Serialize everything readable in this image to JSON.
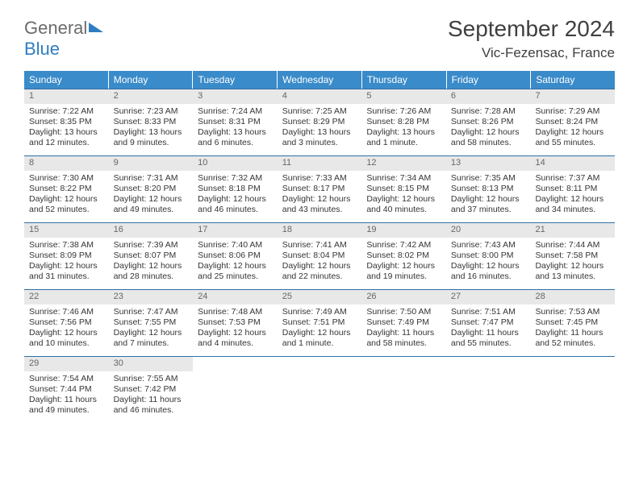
{
  "brand": {
    "part1": "General",
    "part2": "Blue"
  },
  "title": "September 2024",
  "location": "Vic-Fezensac, France",
  "day_headers": [
    "Sunday",
    "Monday",
    "Tuesday",
    "Wednesday",
    "Thursday",
    "Friday",
    "Saturday"
  ],
  "colors": {
    "header_bg": "#3a8bc9",
    "header_text": "#ffffff",
    "week_border": "#2f6fa6",
    "daynum_bg": "#e8e8e8",
    "logo_gray": "#6b6b6b",
    "logo_blue": "#2f7dc0"
  },
  "weeks": [
    [
      {
        "n": "1",
        "sr": "Sunrise: 7:22 AM",
        "ss": "Sunset: 8:35 PM",
        "dl": "Daylight: 13 hours and 12 minutes."
      },
      {
        "n": "2",
        "sr": "Sunrise: 7:23 AM",
        "ss": "Sunset: 8:33 PM",
        "dl": "Daylight: 13 hours and 9 minutes."
      },
      {
        "n": "3",
        "sr": "Sunrise: 7:24 AM",
        "ss": "Sunset: 8:31 PM",
        "dl": "Daylight: 13 hours and 6 minutes."
      },
      {
        "n": "4",
        "sr": "Sunrise: 7:25 AM",
        "ss": "Sunset: 8:29 PM",
        "dl": "Daylight: 13 hours and 3 minutes."
      },
      {
        "n": "5",
        "sr": "Sunrise: 7:26 AM",
        "ss": "Sunset: 8:28 PM",
        "dl": "Daylight: 13 hours and 1 minute."
      },
      {
        "n": "6",
        "sr": "Sunrise: 7:28 AM",
        "ss": "Sunset: 8:26 PM",
        "dl": "Daylight: 12 hours and 58 minutes."
      },
      {
        "n": "7",
        "sr": "Sunrise: 7:29 AM",
        "ss": "Sunset: 8:24 PM",
        "dl": "Daylight: 12 hours and 55 minutes."
      }
    ],
    [
      {
        "n": "8",
        "sr": "Sunrise: 7:30 AM",
        "ss": "Sunset: 8:22 PM",
        "dl": "Daylight: 12 hours and 52 minutes."
      },
      {
        "n": "9",
        "sr": "Sunrise: 7:31 AM",
        "ss": "Sunset: 8:20 PM",
        "dl": "Daylight: 12 hours and 49 minutes."
      },
      {
        "n": "10",
        "sr": "Sunrise: 7:32 AM",
        "ss": "Sunset: 8:18 PM",
        "dl": "Daylight: 12 hours and 46 minutes."
      },
      {
        "n": "11",
        "sr": "Sunrise: 7:33 AM",
        "ss": "Sunset: 8:17 PM",
        "dl": "Daylight: 12 hours and 43 minutes."
      },
      {
        "n": "12",
        "sr": "Sunrise: 7:34 AM",
        "ss": "Sunset: 8:15 PM",
        "dl": "Daylight: 12 hours and 40 minutes."
      },
      {
        "n": "13",
        "sr": "Sunrise: 7:35 AM",
        "ss": "Sunset: 8:13 PM",
        "dl": "Daylight: 12 hours and 37 minutes."
      },
      {
        "n": "14",
        "sr": "Sunrise: 7:37 AM",
        "ss": "Sunset: 8:11 PM",
        "dl": "Daylight: 12 hours and 34 minutes."
      }
    ],
    [
      {
        "n": "15",
        "sr": "Sunrise: 7:38 AM",
        "ss": "Sunset: 8:09 PM",
        "dl": "Daylight: 12 hours and 31 minutes."
      },
      {
        "n": "16",
        "sr": "Sunrise: 7:39 AM",
        "ss": "Sunset: 8:07 PM",
        "dl": "Daylight: 12 hours and 28 minutes."
      },
      {
        "n": "17",
        "sr": "Sunrise: 7:40 AM",
        "ss": "Sunset: 8:06 PM",
        "dl": "Daylight: 12 hours and 25 minutes."
      },
      {
        "n": "18",
        "sr": "Sunrise: 7:41 AM",
        "ss": "Sunset: 8:04 PM",
        "dl": "Daylight: 12 hours and 22 minutes."
      },
      {
        "n": "19",
        "sr": "Sunrise: 7:42 AM",
        "ss": "Sunset: 8:02 PM",
        "dl": "Daylight: 12 hours and 19 minutes."
      },
      {
        "n": "20",
        "sr": "Sunrise: 7:43 AM",
        "ss": "Sunset: 8:00 PM",
        "dl": "Daylight: 12 hours and 16 minutes."
      },
      {
        "n": "21",
        "sr": "Sunrise: 7:44 AM",
        "ss": "Sunset: 7:58 PM",
        "dl": "Daylight: 12 hours and 13 minutes."
      }
    ],
    [
      {
        "n": "22",
        "sr": "Sunrise: 7:46 AM",
        "ss": "Sunset: 7:56 PM",
        "dl": "Daylight: 12 hours and 10 minutes."
      },
      {
        "n": "23",
        "sr": "Sunrise: 7:47 AM",
        "ss": "Sunset: 7:55 PM",
        "dl": "Daylight: 12 hours and 7 minutes."
      },
      {
        "n": "24",
        "sr": "Sunrise: 7:48 AM",
        "ss": "Sunset: 7:53 PM",
        "dl": "Daylight: 12 hours and 4 minutes."
      },
      {
        "n": "25",
        "sr": "Sunrise: 7:49 AM",
        "ss": "Sunset: 7:51 PM",
        "dl": "Daylight: 12 hours and 1 minute."
      },
      {
        "n": "26",
        "sr": "Sunrise: 7:50 AM",
        "ss": "Sunset: 7:49 PM",
        "dl": "Daylight: 11 hours and 58 minutes."
      },
      {
        "n": "27",
        "sr": "Sunrise: 7:51 AM",
        "ss": "Sunset: 7:47 PM",
        "dl": "Daylight: 11 hours and 55 minutes."
      },
      {
        "n": "28",
        "sr": "Sunrise: 7:53 AM",
        "ss": "Sunset: 7:45 PM",
        "dl": "Daylight: 11 hours and 52 minutes."
      }
    ],
    [
      {
        "n": "29",
        "sr": "Sunrise: 7:54 AM",
        "ss": "Sunset: 7:44 PM",
        "dl": "Daylight: 11 hours and 49 minutes."
      },
      {
        "n": "30",
        "sr": "Sunrise: 7:55 AM",
        "ss": "Sunset: 7:42 PM",
        "dl": "Daylight: 11 hours and 46 minutes."
      },
      null,
      null,
      null,
      null,
      null
    ]
  ]
}
